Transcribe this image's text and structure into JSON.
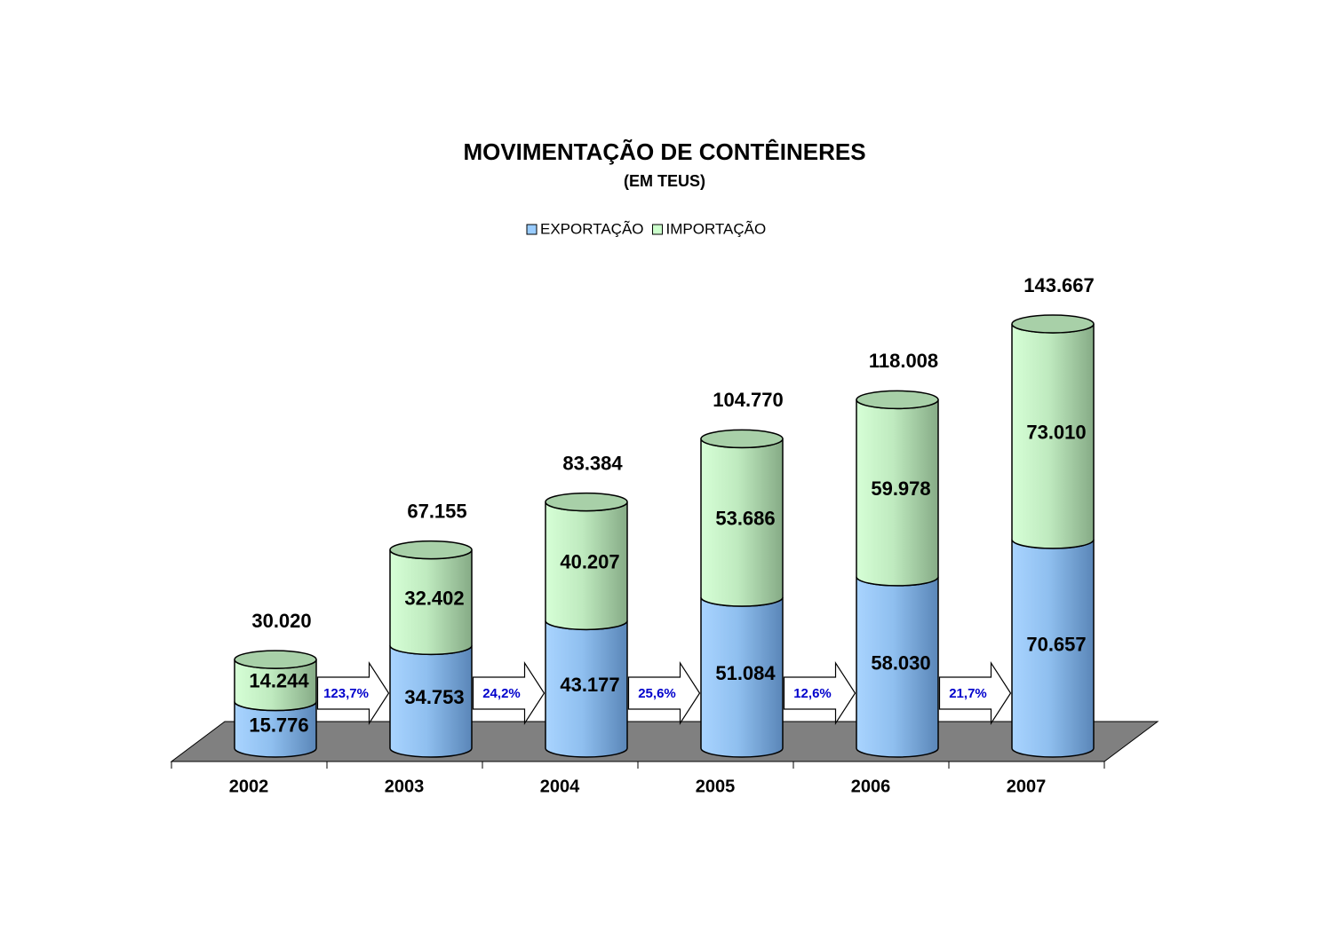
{
  "chart_data": {
    "type": "bar3d-stacked",
    "title": "MOVIMENTAÇÃO DE CONTÊINERES",
    "subtitle": "(EM TEUS)",
    "categories": [
      "2002",
      "2003",
      "2004",
      "2005",
      "2006",
      "2007"
    ],
    "series": [
      {
        "name": "EXPORTAÇÃO",
        "color": "#99ccff",
        "values": [
          15776,
          34753,
          43177,
          51084,
          58030,
          70657
        ],
        "value_labels": [
          "15.776",
          "34.753",
          "43.177",
          "51.084",
          "58.030",
          "70.657"
        ]
      },
      {
        "name": "IMPORTAÇÃO",
        "color": "#ccffcc",
        "values": [
          14244,
          32402,
          40207,
          53686,
          59978,
          73010
        ],
        "value_labels": [
          "14.244",
          "32.402",
          "40.207",
          "53.686",
          "59.978",
          "73.010"
        ]
      }
    ],
    "totals": {
      "values": [
        30020,
        67155,
        83384,
        104770,
        118008,
        143667
      ],
      "value_labels": [
        "30.020",
        "67.155",
        "83.384",
        "104.770",
        "118.008",
        "143.667"
      ]
    },
    "growth": {
      "values": [
        123.7,
        24.2,
        25.6,
        12.6,
        21.7
      ],
      "value_labels": [
        "123,7%",
        "24,2%",
        "25,6%",
        "12,6%",
        "21,7%"
      ],
      "color": "#0000cc"
    },
    "floor_color": "#808080"
  }
}
